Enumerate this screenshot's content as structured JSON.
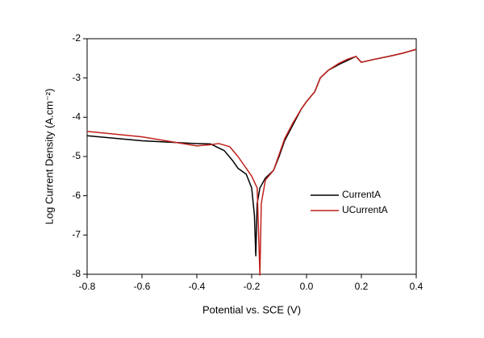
{
  "chart_data": {
    "type": "line",
    "xlabel": "Potential vs. SCE (V)",
    "ylabel": "Log Current Density (A.cm⁻²)",
    "xlim": [
      -0.8,
      0.4
    ],
    "xticks": [
      -0.8,
      -0.6,
      -0.4,
      -0.2,
      {
        "value": 0,
        "label": "0.0"
      },
      0.2,
      0.4
    ],
    "ylim": [
      -8,
      -2
    ],
    "yticks": [
      -8,
      -7,
      -6,
      -5,
      -4,
      -3,
      -2
    ],
    "legend": "right",
    "series": [
      {
        "name": "CurrentA",
        "color": "#000000",
        "x": [
          -0.8,
          -0.6,
          -0.4,
          -0.35,
          -0.3,
          -0.27,
          -0.25,
          -0.22,
          -0.2,
          -0.19,
          -0.185,
          -0.18,
          -0.17,
          -0.15,
          -0.12,
          -0.1,
          -0.08,
          -0.05,
          -0.02,
          0.0,
          0.03,
          0.05,
          0.08,
          0.12,
          0.15,
          0.18,
          0.2,
          0.25,
          0.3,
          0.35,
          0.4
        ],
        "values": [
          -4.47,
          -4.6,
          -4.67,
          -4.68,
          -4.85,
          -5.1,
          -5.3,
          -5.45,
          -5.8,
          -6.5,
          -7.53,
          -6.2,
          -5.8,
          -5.55,
          -5.35,
          -5.0,
          -4.6,
          -4.2,
          -3.8,
          -3.6,
          -3.35,
          -3.0,
          -2.8,
          -2.65,
          -2.55,
          -2.45,
          -2.6,
          -2.52,
          -2.45,
          -2.37,
          -2.27
        ]
      },
      {
        "name": "UCurrentA",
        "color": "#c0201c",
        "x": [
          -0.8,
          -0.6,
          -0.4,
          -0.35,
          -0.32,
          -0.28,
          -0.25,
          -0.22,
          -0.2,
          -0.18,
          -0.17,
          -0.165,
          -0.15,
          -0.12,
          -0.1,
          -0.08,
          -0.05,
          -0.02,
          0.0,
          0.03,
          0.05,
          0.08,
          0.12,
          0.15,
          0.18,
          0.2,
          0.25,
          0.3,
          0.35,
          0.4
        ],
        "values": [
          -4.36,
          -4.5,
          -4.73,
          -4.7,
          -4.67,
          -4.75,
          -5.0,
          -5.3,
          -5.5,
          -5.8,
          -8.02,
          -6.2,
          -5.6,
          -5.35,
          -4.95,
          -4.55,
          -4.15,
          -3.8,
          -3.6,
          -3.35,
          -3.0,
          -2.8,
          -2.62,
          -2.52,
          -2.45,
          -2.6,
          -2.52,
          -2.45,
          -2.37,
          -2.27
        ]
      }
    ]
  }
}
